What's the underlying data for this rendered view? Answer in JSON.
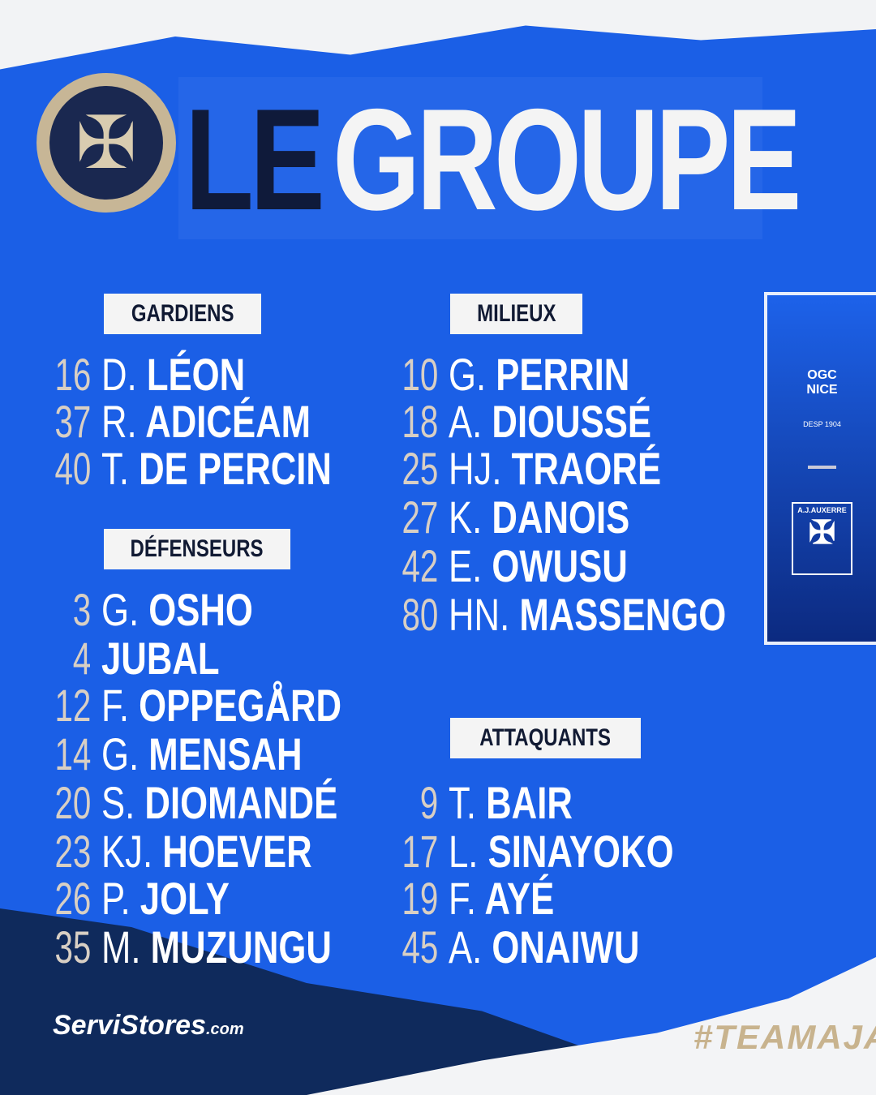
{
  "title": {
    "part1": "LE",
    "part2": "GROUPE"
  },
  "club_logo": "auxerre-cross-icon",
  "sections": {
    "gardiens": {
      "label": "GARDIENS",
      "players": [
        {
          "num": "16",
          "init": "D.",
          "name": "LÉON"
        },
        {
          "num": "37",
          "init": "R.",
          "name": "ADICÉAM"
        },
        {
          "num": "40",
          "init": "T.",
          "name": "DE PERCIN"
        }
      ]
    },
    "defenseurs": {
      "label": "DÉFENSEURS",
      "players": [
        {
          "num": "3",
          "init": "G.",
          "name": "OSHO"
        },
        {
          "num": "4",
          "init": "",
          "name": "JUBAL"
        },
        {
          "num": "12",
          "init": "F.",
          "name": "OPPEGÅRD"
        },
        {
          "num": "14",
          "init": "G.",
          "name": "MENSAH"
        },
        {
          "num": "20",
          "init": "S.",
          "name": "DIOMANDÉ"
        },
        {
          "num": "23",
          "init": "KJ.",
          "name": "HOEVER"
        },
        {
          "num": "26",
          "init": "P.",
          "name": "JOLY"
        },
        {
          "num": "35",
          "init": "M.",
          "name": "MUZUNGU"
        }
      ]
    },
    "milieux": {
      "label": "MILIEUX",
      "players": [
        {
          "num": "10",
          "init": "G.",
          "name": "PERRIN"
        },
        {
          "num": "18",
          "init": "A.",
          "name": "DIOUSSÉ"
        },
        {
          "num": "25",
          "init": "HJ.",
          "name": "TRAORÉ"
        },
        {
          "num": "27",
          "init": "K.",
          "name": "DANOIS"
        },
        {
          "num": "42",
          "init": "E.",
          "name": "OWUSU"
        },
        {
          "num": "80",
          "init": "HN.",
          "name": "MASSENGO"
        }
      ]
    },
    "attaquants": {
      "label": "ATTAQUANTS",
      "players": [
        {
          "num": "9",
          "init": "T.",
          "name": "BAIR"
        },
        {
          "num": "17",
          "init": "L.",
          "name": "SINAYOKO"
        },
        {
          "num": "19",
          "init": "F.",
          "name": "AYÉ"
        },
        {
          "num": "45",
          "init": "A.",
          "name": "ONAIWU"
        }
      ]
    }
  },
  "match": {
    "home": {
      "line1": "OGC",
      "line2": "NICE",
      "est": "DESP 1904"
    },
    "away": {
      "name": "A.J.AUXERRE"
    }
  },
  "sponsor": {
    "name": "ServiStores",
    "suffix": ".com"
  },
  "hashtag": "#TEAMAJA",
  "colors": {
    "background": "#1b5fe6",
    "navy": "#0f1a3a",
    "beige": "#c7b696"
  }
}
